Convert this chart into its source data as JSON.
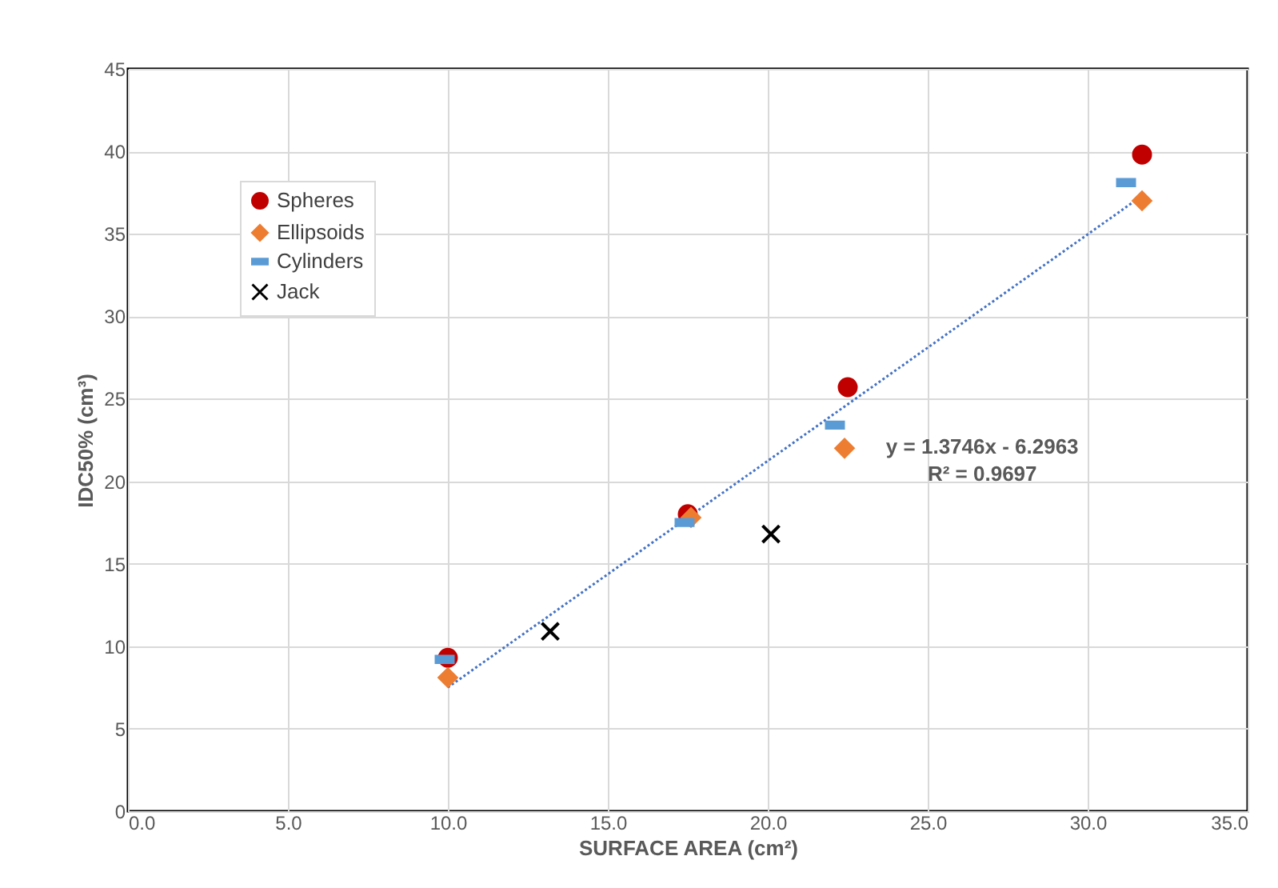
{
  "chart_data": {
    "type": "scatter",
    "xlabel": "SURFACE AREA (cm²)",
    "ylabel": "IDC50% (cm³)",
    "xlim": [
      0,
      35
    ],
    "xticks": [
      {
        "value": 0,
        "label": "0.0"
      },
      {
        "value": 5,
        "label": "5.0"
      },
      {
        "value": 10,
        "label": "10.0"
      },
      {
        "value": 15,
        "label": "15.0"
      },
      {
        "value": 20,
        "label": "20.0"
      },
      {
        "value": 25,
        "label": "25.0"
      },
      {
        "value": 30,
        "label": "30.0"
      },
      {
        "value": 35,
        "label": "35.0"
      }
    ],
    "ylim": [
      0,
      45
    ],
    "yticks": [
      0,
      5,
      10,
      15,
      20,
      25,
      30,
      35,
      40,
      45
    ],
    "grid": true,
    "legend": "top left",
    "series": [
      {
        "name": "Spheres",
        "color": "#c00000",
        "marker": "circle",
        "x": [
          10.0,
          17.5,
          22.5,
          31.7
        ],
        "values": [
          9.3,
          18.0,
          25.7,
          39.8
        ]
      },
      {
        "name": "Ellipsoids",
        "color": "#ed7d31",
        "marker": "diamond",
        "x": [
          10.0,
          17.6,
          22.4,
          31.7
        ],
        "values": [
          8.1,
          17.8,
          22.0,
          37.0
        ]
      },
      {
        "name": "Cylinders",
        "color": "#5b9bd5",
        "marker": "square",
        "x": [
          9.9,
          17.4,
          22.1,
          31.2
        ],
        "values": [
          9.2,
          17.5,
          23.4,
          38.1
        ]
      },
      {
        "name": "Jack",
        "color": "#000000",
        "marker": "cross",
        "x": [
          13.2,
          20.1
        ],
        "values": [
          10.9,
          16.8
        ]
      },
      {
        "type": "line",
        "color": "#4472c4",
        "line_style": "dotted",
        "x": [
          10.0,
          31.7
        ],
        "values": [
          7.5,
          37.3
        ]
      }
    ],
    "annotations": [
      "y = 1.3746x - 6.2963",
      "R² = 0.9697"
    ]
  }
}
